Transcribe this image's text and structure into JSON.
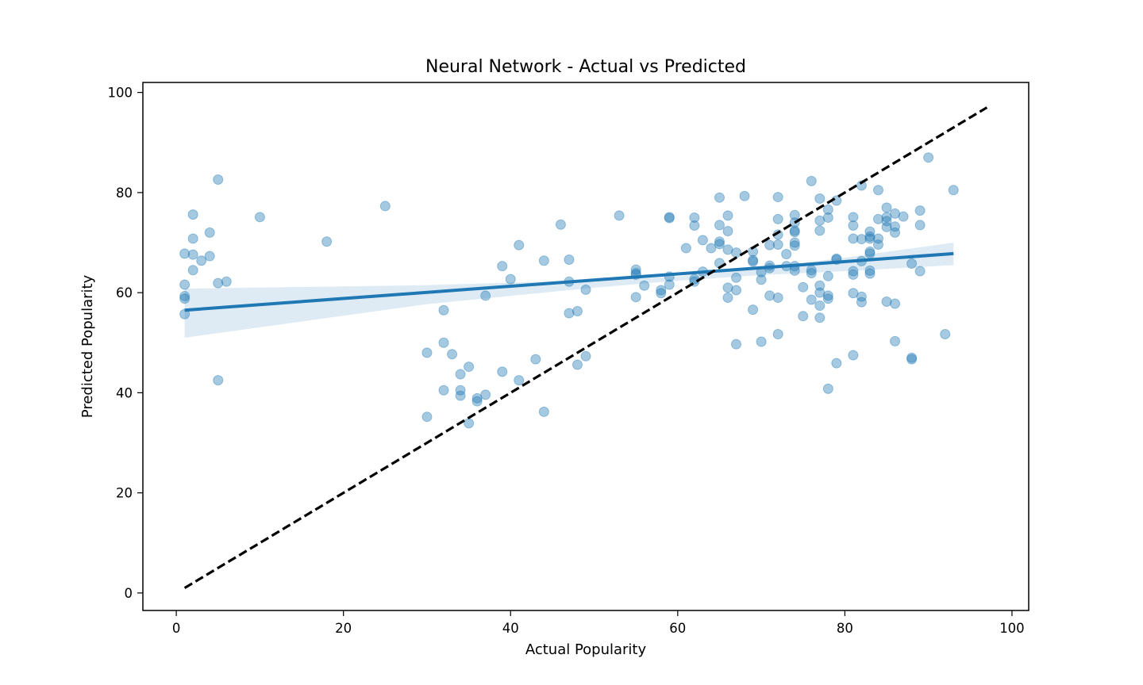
{
  "chart_data": {
    "type": "scatter",
    "title": "Neural Network - Actual vs Predicted",
    "xlabel": "Actual Popularity",
    "ylabel": "Predicted Popularity",
    "xlim": [
      -4,
      102
    ],
    "ylim": [
      -3.5,
      102
    ],
    "xticks": [
      0,
      20,
      40,
      60,
      80,
      100
    ],
    "yticks": [
      0,
      20,
      40,
      60,
      80,
      100
    ],
    "grid": false,
    "legend": "none",
    "colors": {
      "points": "#1f77b4",
      "regression_line": "#1f77b4",
      "confidence_band": "#1f77b4",
      "reference_line": "#000000"
    },
    "series": [
      {
        "kind": "scatter",
        "points": [
          [
            1,
            67.8
          ],
          [
            1,
            61.6
          ],
          [
            1,
            59.3
          ],
          [
            1,
            58.8
          ],
          [
            1,
            55.7
          ],
          [
            2,
            75.6
          ],
          [
            2,
            70.8
          ],
          [
            2,
            67.6
          ],
          [
            2,
            64.5
          ],
          [
            3,
            66.4
          ],
          [
            4,
            72.0
          ],
          [
            4,
            67.3
          ],
          [
            5,
            82.6
          ],
          [
            5,
            61.9
          ],
          [
            5,
            42.5
          ],
          [
            6,
            62.2
          ],
          [
            10,
            75.1
          ],
          [
            18,
            70.2
          ],
          [
            25,
            77.3
          ],
          [
            30,
            48.0
          ],
          [
            30,
            35.2
          ],
          [
            32,
            56.5
          ],
          [
            32,
            50.0
          ],
          [
            32,
            40.5
          ],
          [
            33,
            47.7
          ],
          [
            34,
            43.7
          ],
          [
            34,
            40.5
          ],
          [
            34,
            39.4
          ],
          [
            35,
            45.2
          ],
          [
            35,
            33.9
          ],
          [
            36,
            38.9
          ],
          [
            36,
            38.3
          ],
          [
            37,
            59.4
          ],
          [
            37,
            39.6
          ],
          [
            39,
            65.3
          ],
          [
            39,
            44.2
          ],
          [
            40,
            62.7
          ],
          [
            41,
            69.5
          ],
          [
            41,
            42.5
          ],
          [
            43,
            46.7
          ],
          [
            44,
            66.4
          ],
          [
            44,
            36.2
          ],
          [
            46,
            73.6
          ],
          [
            47,
            66.6
          ],
          [
            47,
            62.2
          ],
          [
            47,
            55.9
          ],
          [
            48,
            56.3
          ],
          [
            48,
            45.6
          ],
          [
            49,
            60.6
          ],
          [
            49,
            47.3
          ],
          [
            53,
            75.4
          ],
          [
            55,
            64.6
          ],
          [
            55,
            63.9
          ],
          [
            55,
            63.6
          ],
          [
            55,
            59.1
          ],
          [
            56,
            61.4
          ],
          [
            58,
            60.5
          ],
          [
            58,
            59.9
          ],
          [
            59,
            75.1
          ],
          [
            59,
            74.9
          ],
          [
            59,
            63.2
          ],
          [
            59,
            61.6
          ],
          [
            61,
            68.9
          ],
          [
            62,
            75.0
          ],
          [
            62,
            73.4
          ],
          [
            62,
            62.7
          ],
          [
            62,
            62.2
          ],
          [
            63,
            70.5
          ],
          [
            63,
            64.2
          ],
          [
            64,
            68.9
          ],
          [
            65,
            79.0
          ],
          [
            65,
            73.5
          ],
          [
            65,
            70.2
          ],
          [
            65,
            69.7
          ],
          [
            65,
            65.9
          ],
          [
            66,
            75.4
          ],
          [
            66,
            72.3
          ],
          [
            66,
            68.6
          ],
          [
            66,
            61.0
          ],
          [
            66,
            59.0
          ],
          [
            67,
            68.0
          ],
          [
            67,
            63.0
          ],
          [
            67,
            60.5
          ],
          [
            67,
            49.7
          ],
          [
            68,
            79.3
          ],
          [
            69,
            68.2
          ],
          [
            69,
            66.5
          ],
          [
            69,
            66.2
          ],
          [
            69,
            56.6
          ],
          [
            70,
            64.1
          ],
          [
            70,
            62.6
          ],
          [
            70,
            50.2
          ],
          [
            71,
            69.5
          ],
          [
            71,
            65.4
          ],
          [
            71,
            64.9
          ],
          [
            71,
            59.4
          ],
          [
            72,
            79.1
          ],
          [
            72,
            74.7
          ],
          [
            72,
            71.6
          ],
          [
            72,
            69.6
          ],
          [
            72,
            59.0
          ],
          [
            72,
            51.7
          ],
          [
            73,
            67.7
          ],
          [
            73,
            65.3
          ],
          [
            74,
            75.5
          ],
          [
            74,
            74.0
          ],
          [
            74,
            72.4
          ],
          [
            74,
            72.1
          ],
          [
            74,
            70.0
          ],
          [
            74,
            69.4
          ],
          [
            74,
            65.3
          ],
          [
            74,
            64.4
          ],
          [
            75,
            61.1
          ],
          [
            75,
            55.3
          ],
          [
            76,
            82.3
          ],
          [
            76,
            64.5
          ],
          [
            76,
            63.9
          ],
          [
            76,
            58.6
          ],
          [
            77,
            78.8
          ],
          [
            77,
            74.4
          ],
          [
            77,
            72.4
          ],
          [
            77,
            61.4
          ],
          [
            77,
            60.0
          ],
          [
            77,
            57.4
          ],
          [
            77,
            55.0
          ],
          [
            78,
            76.6
          ],
          [
            78,
            75.0
          ],
          [
            78,
            63.3
          ],
          [
            78,
            59.4
          ],
          [
            78,
            58.8
          ],
          [
            78,
            40.8
          ],
          [
            79,
            78.4
          ],
          [
            79,
            66.8
          ],
          [
            79,
            66.6
          ],
          [
            79,
            45.9
          ],
          [
            81,
            75.1
          ],
          [
            81,
            73.4
          ],
          [
            81,
            70.8
          ],
          [
            81,
            64.3
          ],
          [
            81,
            63.6
          ],
          [
            81,
            59.9
          ],
          [
            81,
            47.5
          ],
          [
            82,
            81.4
          ],
          [
            82,
            70.7
          ],
          [
            82,
            66.3
          ],
          [
            82,
            59.2
          ],
          [
            82,
            58.1
          ],
          [
            83,
            72.2
          ],
          [
            83,
            71.2
          ],
          [
            83,
            70.8
          ],
          [
            83,
            68.2
          ],
          [
            83,
            67.8
          ],
          [
            83,
            64.4
          ],
          [
            83,
            63.8
          ],
          [
            84,
            80.5
          ],
          [
            84,
            74.7
          ],
          [
            84,
            70.8
          ],
          [
            84,
            69.6
          ],
          [
            85,
            77.0
          ],
          [
            85,
            75.1
          ],
          [
            85,
            74.3
          ],
          [
            85,
            73.1
          ],
          [
            85,
            58.2
          ],
          [
            86,
            75.8
          ],
          [
            86,
            73.2
          ],
          [
            86,
            72.0
          ],
          [
            86,
            57.8
          ],
          [
            86,
            50.3
          ],
          [
            87,
            75.2
          ],
          [
            88,
            65.8
          ],
          [
            88,
            47.0
          ],
          [
            88,
            46.7
          ],
          [
            89,
            76.4
          ],
          [
            89,
            73.5
          ],
          [
            89,
            64.3
          ],
          [
            90,
            87.0
          ],
          [
            92,
            51.7
          ],
          [
            93,
            80.5
          ]
        ]
      },
      {
        "kind": "regression",
        "x": [
          1,
          93
        ],
        "y": [
          56.5,
          67.8
        ],
        "ci_upper": [
          [
            1,
            60.8
          ],
          [
            30,
            61.5
          ],
          [
            50,
            62.5
          ],
          [
            60,
            63.2
          ],
          [
            70,
            64.9
          ],
          [
            80,
            67.0
          ],
          [
            93,
            70.0
          ]
        ],
        "ci_lower": [
          [
            1,
            51.0
          ],
          [
            30,
            57.7
          ],
          [
            50,
            61.0
          ],
          [
            60,
            62.4
          ],
          [
            70,
            63.5
          ],
          [
            80,
            64.3
          ],
          [
            93,
            65.5
          ]
        ]
      },
      {
        "kind": "reference",
        "style": "dashed",
        "x": [
          1,
          97
        ],
        "y": [
          1,
          97
        ]
      }
    ]
  }
}
